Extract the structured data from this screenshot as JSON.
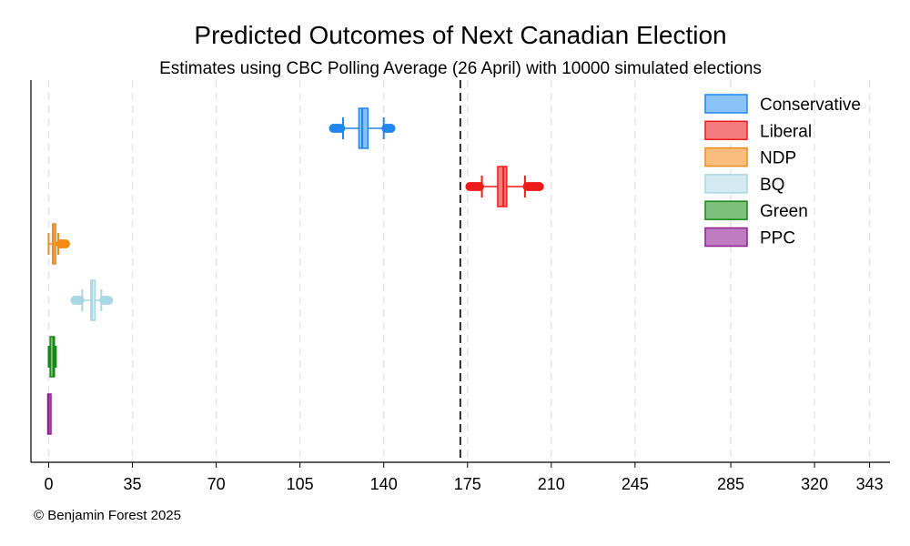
{
  "chart_data": {
    "type": "box",
    "orientation": "horizontal",
    "title": "Predicted Outcomes of Next Canadian Election",
    "subtitle": "Estimates using CBC Polling Average (26 April) with 10000 simulated elections",
    "xlabel": "",
    "ylabel": "",
    "xlim": [
      -7,
      343
    ],
    "x_ticks": [
      0,
      35,
      70,
      105,
      140,
      175,
      210,
      245,
      285,
      320,
      343
    ],
    "grid": "vertical dashed",
    "reference_line": {
      "x": 172,
      "style": "dashed"
    },
    "legend_position": "top-right",
    "series": [
      {
        "name": "Conservative",
        "color": "#1f87ee",
        "fill": "#8ac3f7",
        "whisker_low": 123,
        "q1": 130,
        "median": 131,
        "q3": 133,
        "whisker_high": 140,
        "outliers_low": [
          119,
          120,
          121,
          122
        ],
        "outliers_high": [
          141,
          142,
          143
        ]
      },
      {
        "name": "Liberal",
        "color": "#ee1b1b",
        "fill": "#f47c7c",
        "whisker_low": 181,
        "q1": 188,
        "median": 190,
        "q3": 191,
        "whisker_high": 199,
        "outliers_low": [
          176,
          177,
          178,
          179,
          180
        ],
        "outliers_high": [
          200,
          201,
          202,
          203,
          204,
          205
        ]
      },
      {
        "name": "NDP",
        "color": "#f58b15",
        "fill": "#f9bd7d",
        "whisker_low": 0,
        "q1": 2,
        "median": 2,
        "q3": 2,
        "whisker_high": 4,
        "outliers_low": [],
        "outliers_high": [
          5,
          6,
          7
        ]
      },
      {
        "name": "BQ",
        "color": "#a9d7e6",
        "fill": "#d3eaf2",
        "whisker_low": 14,
        "q1": 18,
        "median": 18,
        "q3": 19,
        "whisker_high": 22,
        "outliers_low": [
          11,
          12,
          13
        ],
        "outliers_high": [
          23,
          24,
          25
        ]
      },
      {
        "name": "Green",
        "color": "#138a13",
        "fill": "#7cc07c",
        "whisker_low": 0,
        "q1": 1,
        "median": 2,
        "q3": 2,
        "whisker_high": 3,
        "outliers_low": [],
        "outliers_high": []
      },
      {
        "name": "PPC",
        "color": "#8e1f8e",
        "fill": "#c07cc0",
        "whisker_low": 0,
        "q1": 0,
        "median": 0,
        "q3": 0,
        "whisker_high": 0,
        "outliers_low": [],
        "outliers_high": []
      }
    ]
  },
  "credit": "© Benjamin Forest 2025"
}
